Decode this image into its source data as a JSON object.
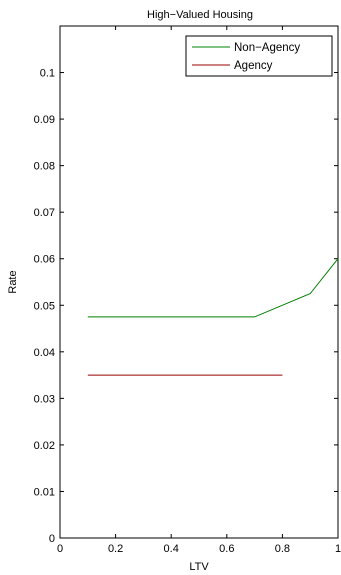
{
  "chart_data": {
    "type": "line",
    "title": "High−Valued Housing",
    "xlabel": "LTV",
    "ylabel": "Rate",
    "xlim": [
      0,
      1
    ],
    "ylim": [
      0,
      0.11
    ],
    "xticks": [
      "0",
      "0.2",
      "0.4",
      "0.6",
      "0.8",
      "1"
    ],
    "yticks": [
      "0",
      "0.01",
      "0.02",
      "0.03",
      "0.04",
      "0.05",
      "0.06",
      "0.07",
      "0.08",
      "0.09",
      "0.1"
    ],
    "grid": false,
    "legend_position": "top-right",
    "series": [
      {
        "name": "Non−Agency",
        "color": "#008000",
        "x": [
          0.1,
          0.7,
          0.9,
          1.0
        ],
        "y": [
          0.0475,
          0.0475,
          0.0525,
          0.06
        ]
      },
      {
        "name": "Agency",
        "color": "#990000",
        "x": [
          0.1,
          0.8
        ],
        "y": [
          0.035,
          0.035
        ]
      }
    ]
  }
}
